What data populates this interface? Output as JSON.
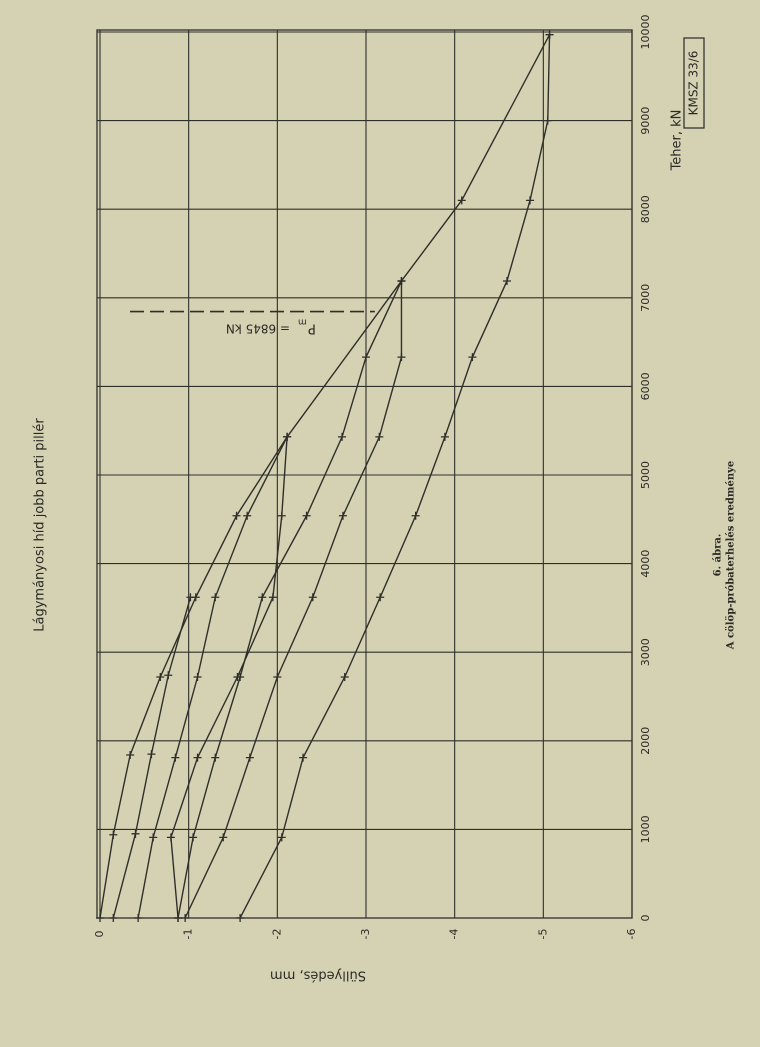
{
  "chart_data": {
    "type": "line",
    "title": "Lágymányosi híd jobb parti pillér",
    "x_label": "Teher, kN",
    "y_label": "Süllyedés, mm",
    "stamp": "KMSZ 33/6",
    "caption_number": "6. ábra.",
    "caption": "A cölöp-próbaterhelés eredménye",
    "annotation_main": "P",
    "annotation_sub": "m",
    "annotation_rest": "= 6845 kN",
    "reference_load": 6845,
    "xlim": [
      0,
      10000
    ],
    "xticks": [
      0,
      1000,
      2000,
      3000,
      4000,
      5000,
      6000,
      7000,
      8000,
      9000,
      10000
    ],
    "ylim": [
      0,
      -6
    ],
    "yticks": [
      0,
      -1,
      -2,
      -3,
      -4,
      -5,
      -6
    ],
    "grid": true,
    "color": "#2f2f2a",
    "series": [
      {
        "x": [
          0,
          940,
          1840,
          2720,
          3620,
          4540,
          5430,
          7190,
          8100,
          9970
        ],
        "values": [
          0,
          -0.15,
          -0.34,
          -0.68,
          -1.08,
          -1.54,
          -2.11,
          -3.4,
          -4.08,
          -5.07
        ]
      },
      {
        "x": [
          3620,
          2740,
          1850,
          950,
          0
        ],
        "values": [
          -1.02,
          -0.77,
          -0.58,
          -0.4,
          -0.15
        ]
      },
      {
        "x": [
          0,
          910,
          1810,
          2720,
          3620,
          4540,
          5430
        ],
        "values": [
          -0.43,
          -0.6,
          -0.85,
          -1.1,
          -1.3,
          -1.66,
          -2.11
        ]
      },
      {
        "x": [
          5430,
          4540,
          3620,
          2720,
          1810,
          910,
          0
        ],
        "values": [
          -2.11,
          -2.05,
          -1.95,
          -1.55,
          -1.1,
          -0.8,
          -0.88
        ]
      },
      {
        "x": [
          0,
          910,
          1810,
          2720,
          3620,
          4540,
          5430,
          6330,
          7190
        ],
        "values": [
          -0.88,
          -1.05,
          -1.3,
          -1.58,
          -1.83,
          -2.33,
          -2.73,
          -3.0,
          -3.4
        ]
      },
      {
        "x": [
          7190,
          6330,
          5430,
          4540,
          3620,
          2720,
          1810,
          910,
          0
        ],
        "values": [
          -3.4,
          -3.4,
          -3.15,
          -2.74,
          -2.4,
          -2.0,
          -1.69,
          -1.39,
          -0.96
        ]
      },
      {
        "x": [
          9970,
          9000,
          8100,
          7190,
          6330,
          5430,
          4540,
          3620,
          2720,
          1810,
          910,
          0
        ],
        "values": [
          -5.07,
          -5.05,
          -4.85,
          -4.59,
          -4.2,
          -3.89,
          -3.56,
          -3.16,
          -2.76,
          -2.29,
          -2.05,
          -1.58
        ]
      }
    ]
  }
}
